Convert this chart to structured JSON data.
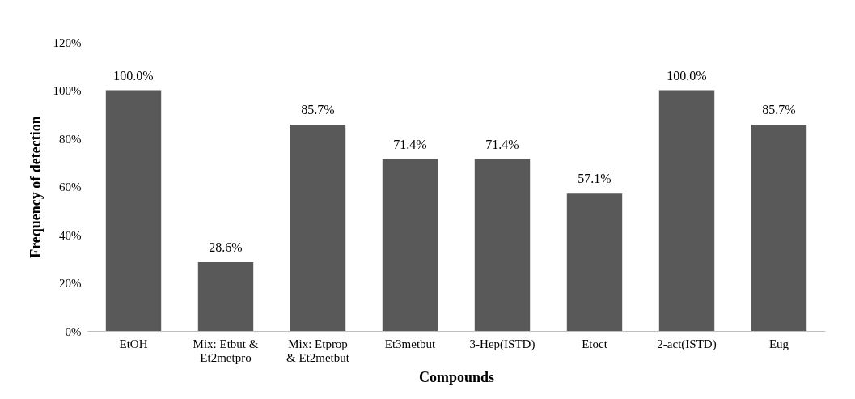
{
  "chart_data": {
    "type": "bar",
    "xlabel": "Compounds",
    "ylabel": "Frequency of detection",
    "categories": [
      "EtOH",
      "Mix: Etbut & Et2metpro",
      "Mix: Etprop & Et2metbut",
      "Et3metbut",
      "3-Hep(ISTD)",
      "Etoct",
      "2-act(ISTD)",
      "Eug"
    ],
    "values": [
      100,
      28.6,
      85.7,
      71.4,
      71.4,
      57.1,
      100,
      85.7
    ],
    "value_labels": [
      "100.0%",
      "28.6%",
      "85.7%",
      "71.4%",
      "71.4%",
      "57.1%",
      "100.0%",
      "85.7%"
    ],
    "color": "#595959",
    "ylim": [
      0,
      120
    ],
    "yticks": [
      {
        "value": 0,
        "label": "0%"
      },
      {
        "value": 20,
        "label": "20%"
      },
      {
        "value": 40,
        "label": "40%"
      },
      {
        "value": 60,
        "label": "60%"
      },
      {
        "value": 80,
        "label": "80%"
      },
      {
        "value": 100,
        "label": "100%"
      },
      {
        "value": 120,
        "label": "120%"
      }
    ],
    "grid": false
  }
}
